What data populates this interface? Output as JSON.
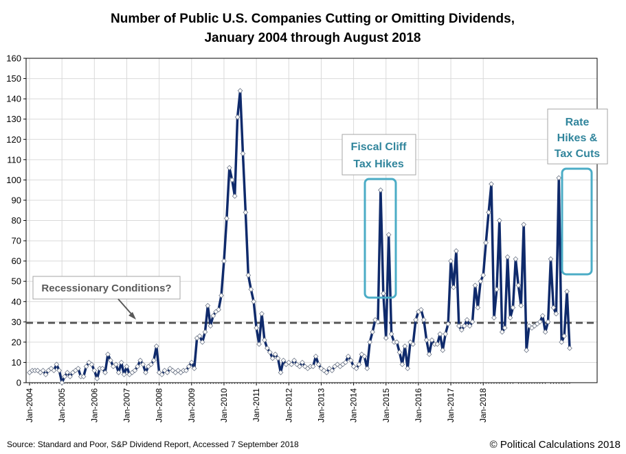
{
  "chart_data": {
    "type": "line",
    "title": "Number of Public U.S. Companies Cutting or Omitting Dividends,",
    "subtitle": "January 2004 through August 2018",
    "xlabel": "",
    "ylabel": "",
    "ylim": [
      0,
      160
    ],
    "y_ticks": [
      "0",
      "10",
      "20",
      "30",
      "40",
      "50",
      "60",
      "70",
      "80",
      "90",
      "100",
      "110",
      "120",
      "130",
      "140",
      "150",
      "160"
    ],
    "x_ticks": [
      "Jan-2004",
      "Jan-2005",
      "Jan-2006",
      "Jan-2007",
      "Jan-2008",
      "Jan-2009",
      "Jan-2010",
      "Jan-2011",
      "Jan-2012",
      "Jan-2013",
      "Jan-2014",
      "Jan-2015",
      "Jan-2016",
      "Jan-2017",
      "Jan-2018"
    ],
    "grid": true,
    "start": "Jan-2004",
    "end": "Aug-2018",
    "series": [
      {
        "name": "Dividend cuts or omissions",
        "color": "#0f2a6b",
        "values": [
          5,
          6,
          6,
          6,
          5,
          6,
          4,
          6,
          7,
          6,
          9,
          6,
          0,
          3,
          5,
          3,
          5,
          6,
          7,
          3,
          3,
          8,
          10,
          9,
          6,
          2,
          7,
          7,
          5,
          14,
          11,
          8,
          9,
          5,
          10,
          4,
          8,
          4,
          5,
          6,
          8,
          11,
          9,
          5,
          8,
          9,
          11,
          18,
          5,
          4,
          6,
          5,
          7,
          6,
          5,
          6,
          5,
          6,
          6,
          8,
          10,
          7,
          22,
          23,
          20,
          25,
          38,
          28,
          33,
          35,
          36,
          43,
          60,
          81,
          106,
          100,
          92,
          131,
          144,
          113,
          84,
          53,
          46,
          40,
          27,
          19,
          34,
          21,
          17,
          15,
          12,
          14,
          12,
          5,
          11,
          9,
          10,
          9,
          11,
          9,
          8,
          10,
          8,
          7,
          8,
          8,
          13,
          9,
          7,
          6,
          5,
          7,
          6,
          8,
          9,
          8,
          9,
          10,
          13,
          11,
          8,
          7,
          9,
          14,
          13,
          7,
          20,
          25,
          31,
          30,
          95,
          44,
          22,
          73,
          24,
          20,
          20,
          15,
          9,
          18,
          7,
          20,
          19,
          31,
          35,
          36,
          31,
          21,
          14,
          21,
          19,
          19,
          24,
          16,
          24,
          29,
          60,
          47,
          65,
          28,
          26,
          28,
          31,
          28,
          30,
          48,
          37,
          50,
          53,
          69,
          84,
          98,
          32,
          46,
          80,
          25,
          27,
          62,
          32,
          37,
          61,
          48,
          38,
          78,
          16,
          28,
          27,
          28,
          29,
          30,
          33,
          25,
          30,
          61,
          37,
          34,
          101,
          20,
          23,
          45,
          17
        ]
      }
    ],
    "reference_line": {
      "value": 29.5,
      "label": "Recessionary Conditions?"
    },
    "annotations": [
      {
        "label_lines": [
          "Fiscal Cliff",
          "Tax Hikes"
        ]
      },
      {
        "label_lines": [
          "Rate",
          "Hikes &",
          "Tax Cuts"
        ]
      }
    ]
  },
  "footer": {
    "source": "Source:  Standard and Poor,  S&P Dividend  Report,  Accessed 7 September 2018",
    "credit": "© Political Calculations 2018"
  },
  "colors": {
    "line": "#0f2a6b",
    "annotation": "#4bacc6",
    "annotation_text": "#31859c",
    "reference": "#595959"
  }
}
